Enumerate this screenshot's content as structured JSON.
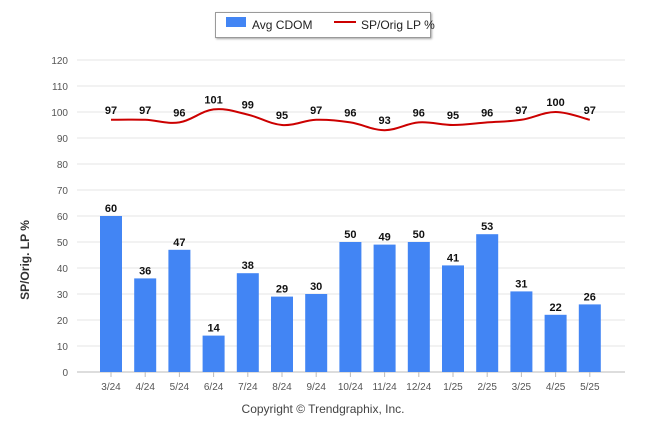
{
  "chart_data": {
    "type": "bar",
    "categories": [
      "3/24",
      "4/24",
      "5/24",
      "6/24",
      "7/24",
      "8/24",
      "9/24",
      "10/24",
      "11/24",
      "12/24",
      "1/25",
      "2/25",
      "3/25",
      "4/25",
      "5/25"
    ],
    "series": [
      {
        "name": "Avg CDOM",
        "type": "bar",
        "color": "#4285f4",
        "values": [
          60,
          36,
          47,
          14,
          38,
          29,
          30,
          50,
          49,
          50,
          41,
          53,
          31,
          22,
          26
        ]
      },
      {
        "name": "SP/Orig LP %",
        "type": "line",
        "color": "#cc0000",
        "values": [
          97,
          97,
          96,
          101,
          99,
          95,
          97,
          96,
          93,
          96,
          95,
          96,
          97,
          100,
          97
        ]
      }
    ],
    "ylabel": "SP/Orig. LP %",
    "ylim": [
      0,
      120
    ],
    "yticks": [
      0,
      10,
      20,
      30,
      40,
      50,
      60,
      70,
      80,
      90,
      100,
      110,
      120
    ],
    "grid": true,
    "legend_position": "top-center"
  },
  "legend": {
    "bar_label": "Avg CDOM",
    "line_label": "SP/Orig LP %"
  },
  "footer": "Copyright © Trendgraphix, Inc."
}
